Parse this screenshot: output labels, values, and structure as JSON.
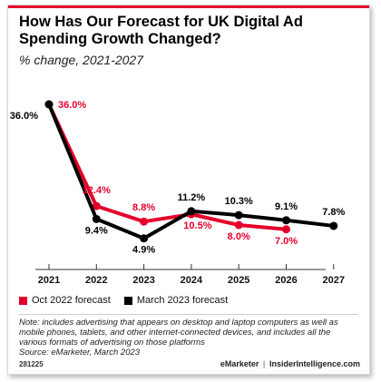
{
  "header": {
    "title": "How Has Our Forecast for UK Digital Ad Spending Growth Changed?",
    "subtitle": "% change, 2021-2027"
  },
  "colors": {
    "accent": "#e4002b",
    "oct": "#e4002b",
    "march": "#000000"
  },
  "chart_data": {
    "type": "line",
    "title": "How Has Our Forecast for UK Digital Ad Spending Growth Changed?",
    "subtitle": "% change, 2021-2027",
    "xlabel": "",
    "ylabel": "",
    "categories": [
      "2021",
      "2022",
      "2023",
      "2024",
      "2025",
      "2026",
      "2027"
    ],
    "ylim": [
      0,
      40
    ],
    "grid": false,
    "legend": "bottom-left",
    "series": [
      {
        "name": "Oct 2022 forecast",
        "color": "#e4002b",
        "values": [
          36.0,
          12.4,
          8.8,
          10.5,
          8.0,
          7.0,
          null
        ],
        "labels": [
          "36.0%",
          "12.4%",
          "8.8%",
          "10.5%",
          "8.0%",
          "7.0%",
          ""
        ]
      },
      {
        "name": "March 2023 forecast",
        "color": "#000000",
        "values": [
          36.0,
          9.4,
          4.9,
          11.2,
          10.3,
          9.1,
          7.8
        ],
        "labels": [
          "36.0%",
          "9.4%",
          "4.9%",
          "11.2%",
          "10.3%",
          "9.1%",
          "7.8%"
        ]
      }
    ]
  },
  "legend": {
    "oct_label": "Oct 2022 forecast",
    "march_label": "March 2023 forecast"
  },
  "note": {
    "text": "Note: includes advertising that appears on desktop and laptop computers as well as mobile phones, tablets, and other internet-connected devices, and includes all the various formats of advertising on those platforms",
    "source": "Source: eMarketer, March 2023"
  },
  "footer": {
    "id": "281225",
    "brand": "eMarketer",
    "separator": "|",
    "site": "InsiderIntelligence.com"
  }
}
